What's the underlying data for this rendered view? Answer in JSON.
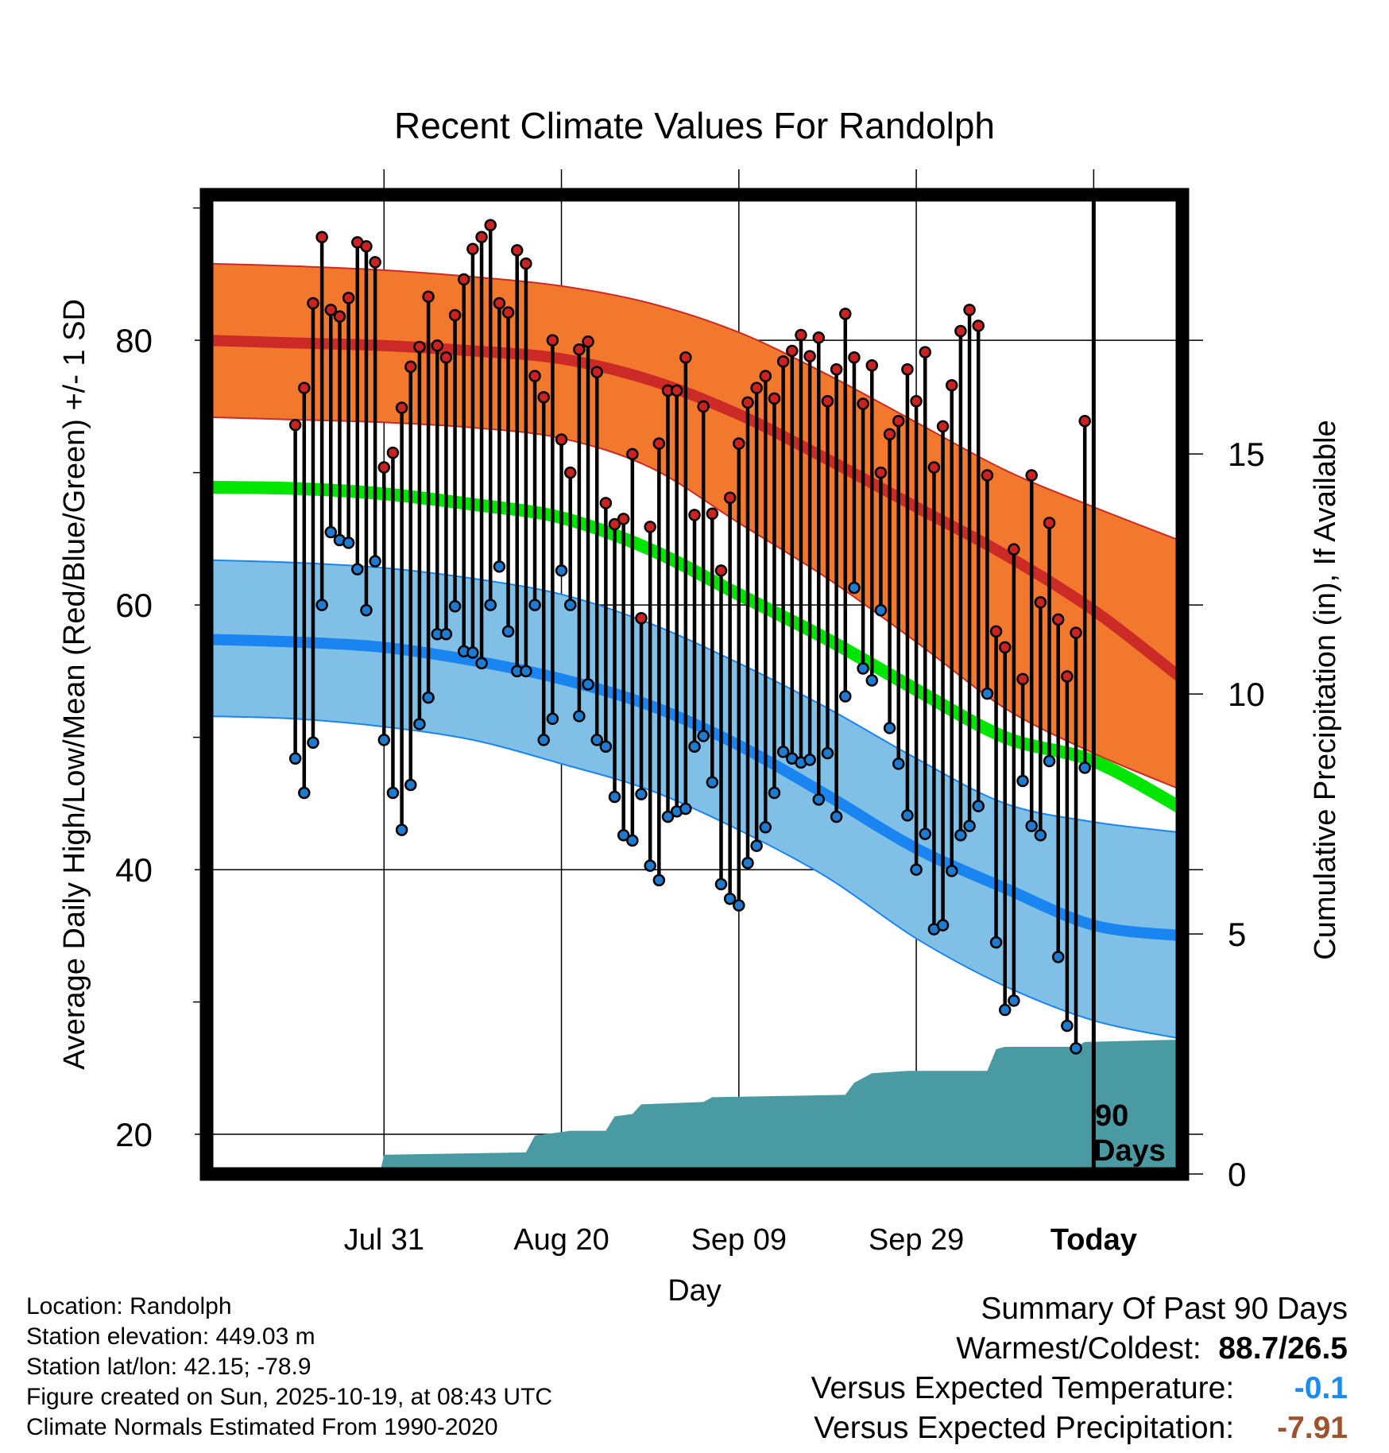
{
  "chart_data": {
    "type": "line",
    "title": "Recent Climate Values For Randolph",
    "xlabel": "Day",
    "ylabel": "Average Daily High/Low/Mean (Red/Blue/Green) +/- 1 SD",
    "y2label": "Cumulative Precipitation (in), If Available",
    "x_tick_labels": [
      "Jul 31",
      "Aug 20",
      "Sep 09",
      "Sep 29",
      "Today"
    ],
    "x_tick_days": [
      10,
      30,
      50,
      70,
      90
    ],
    "xlim": [
      -10,
      100
    ],
    "ylim": [
      17,
      91
    ],
    "y_ticks": [
      20,
      40,
      60,
      80
    ],
    "y2lim": [
      0,
      20.4
    ],
    "y2_ticks": [
      0,
      5,
      10,
      15
    ],
    "today_marker_label": "90 Days",
    "normal_high_mean": [
      [
        -10,
        80.0
      ],
      [
        0,
        79.8
      ],
      [
        10,
        79.6
      ],
      [
        20,
        79.2
      ],
      [
        30,
        78.6
      ],
      [
        40,
        77.0
      ],
      [
        50,
        74.4
      ],
      [
        60,
        71.0
      ],
      [
        70,
        67.4
      ],
      [
        80,
        63.8
      ],
      [
        90,
        59.6
      ],
      [
        100,
        54.4
      ]
    ],
    "normal_high_sd_upper": [
      [
        -10,
        85.8
      ],
      [
        0,
        85.6
      ],
      [
        10,
        85.3
      ],
      [
        20,
        84.8
      ],
      [
        30,
        84.1
      ],
      [
        40,
        82.8
      ],
      [
        50,
        80.6
      ],
      [
        60,
        77.4
      ],
      [
        70,
        73.8
      ],
      [
        80,
        70.2
      ],
      [
        90,
        67.4
      ],
      [
        100,
        64.8
      ]
    ],
    "normal_high_sd_lower": [
      [
        -10,
        74.2
      ],
      [
        0,
        74.0
      ],
      [
        10,
        73.8
      ],
      [
        20,
        73.4
      ],
      [
        30,
        72.6
      ],
      [
        40,
        70.4
      ],
      [
        50,
        66.2
      ],
      [
        60,
        62.0
      ],
      [
        70,
        57.2
      ],
      [
        80,
        52.2
      ],
      [
        90,
        48.8
      ],
      [
        100,
        46.0
      ]
    ],
    "normal_mean": [
      [
        -10,
        68.9
      ],
      [
        0,
        68.8
      ],
      [
        10,
        68.4
      ],
      [
        20,
        67.6
      ],
      [
        30,
        66.6
      ],
      [
        40,
        64.2
      ],
      [
        50,
        60.8
      ],
      [
        60,
        57.4
      ],
      [
        70,
        53.6
      ],
      [
        80,
        50.0
      ],
      [
        90,
        48.2
      ],
      [
        100,
        44.6
      ]
    ],
    "normal_low_mean": [
      [
        -10,
        57.4
      ],
      [
        0,
        57.2
      ],
      [
        10,
        56.8
      ],
      [
        20,
        55.8
      ],
      [
        30,
        54.4
      ],
      [
        40,
        52.4
      ],
      [
        50,
        49.4
      ],
      [
        60,
        45.6
      ],
      [
        70,
        41.6
      ],
      [
        80,
        38.6
      ],
      [
        90,
        35.8
      ],
      [
        100,
        35.0
      ]
    ],
    "normal_low_sd_upper": [
      [
        -10,
        63.4
      ],
      [
        0,
        63.2
      ],
      [
        10,
        62.8
      ],
      [
        20,
        62.0
      ],
      [
        30,
        60.8
      ],
      [
        40,
        58.6
      ],
      [
        50,
        55.6
      ],
      [
        60,
        52.2
      ],
      [
        70,
        48.4
      ],
      [
        80,
        45.0
      ],
      [
        90,
        43.6
      ],
      [
        100,
        42.8
      ]
    ],
    "normal_low_sd_lower": [
      [
        -10,
        51.6
      ],
      [
        0,
        51.4
      ],
      [
        10,
        50.8
      ],
      [
        20,
        49.8
      ],
      [
        30,
        48.0
      ],
      [
        40,
        46.0
      ],
      [
        50,
        43.0
      ],
      [
        60,
        39.4
      ],
      [
        70,
        34.8
      ],
      [
        80,
        31.2
      ],
      [
        90,
        28.6
      ],
      [
        100,
        27.2
      ]
    ],
    "series": [
      {
        "name": "Daily High",
        "values": [
          73.6,
          76.4,
          82.8,
          87.8,
          82.3,
          81.8,
          83.2,
          87.4,
          87.1,
          85.9,
          70.4,
          71.5,
          74.9,
          78.0,
          79.5,
          83.3,
          79.6,
          78.7,
          81.9,
          84.6,
          86.9,
          87.8,
          88.7,
          82.8,
          82.1,
          86.8,
          85.8,
          77.3,
          75.7,
          80.0,
          72.5,
          70.0,
          79.3,
          79.9,
          77.6,
          67.7,
          66.1,
          66.5,
          71.4,
          59.0,
          65.9,
          72.2,
          76.2,
          76.2,
          78.7,
          66.8,
          75.0,
          66.9,
          62.6,
          68.1,
          72.2,
          75.3,
          76.4,
          77.3,
          75.6,
          78.4,
          79.2,
          80.4,
          78.8,
          80.2,
          75.4,
          77.8,
          82.0,
          78.7,
          75.2,
          78.1,
          70.0,
          72.9,
          73.9,
          77.8,
          75.4,
          79.1,
          70.4,
          73.5,
          76.6,
          80.7,
          82.3,
          81.1,
          69.8,
          58.0,
          56.8,
          64.2,
          54.4,
          69.8,
          60.2,
          66.2,
          58.9,
          54.6,
          57.9,
          73.9
        ]
      },
      {
        "name": "Daily Low",
        "values": [
          48.4,
          45.8,
          49.6,
          60.0,
          65.5,
          64.9,
          64.7,
          62.7,
          59.6,
          63.3,
          49.8,
          45.8,
          43.0,
          46.4,
          51.0,
          53.0,
          57.8,
          57.8,
          59.9,
          56.5,
          56.4,
          55.6,
          60.0,
          62.9,
          58.0,
          55.0,
          55.0,
          60.0,
          49.8,
          51.4,
          62.6,
          60.0,
          51.6,
          54.0,
          49.8,
          49.3,
          45.5,
          42.6,
          42.2,
          45.7,
          40.3,
          39.2,
          44.0,
          44.4,
          44.6,
          49.3,
          50.1,
          46.6,
          38.9,
          37.8,
          37.3,
          40.5,
          41.8,
          43.2,
          45.8,
          48.9,
          48.4,
          48.1,
          48.3,
          45.3,
          48.8,
          44.0,
          53.1,
          61.3,
          55.2,
          54.3,
          59.6,
          50.7,
          48.0,
          44.1,
          40.0,
          42.7,
          35.5,
          35.8,
          39.9,
          42.6,
          43.3,
          44.8,
          53.3,
          34.5,
          29.4,
          30.1,
          46.7,
          43.3,
          42.6,
          48.2,
          33.4,
          28.2,
          26.5,
          47.7
        ]
      }
    ],
    "cumulative_precipitation": [
      [
        0,
        0.0
      ],
      [
        9.5,
        0.0
      ],
      [
        10,
        0.4
      ],
      [
        26,
        0.45
      ],
      [
        27,
        0.8
      ],
      [
        31,
        0.9
      ],
      [
        35,
        0.9
      ],
      [
        36,
        1.2
      ],
      [
        38,
        1.25
      ],
      [
        39,
        1.45
      ],
      [
        46,
        1.5
      ],
      [
        47,
        1.6
      ],
      [
        62,
        1.65
      ],
      [
        63,
        1.9
      ],
      [
        65,
        2.1
      ],
      [
        69,
        2.15
      ],
      [
        78,
        2.15
      ],
      [
        79,
        2.6
      ],
      [
        80,
        2.65
      ],
      [
        88,
        2.65
      ],
      [
        89,
        2.75
      ],
      [
        100,
        2.8
      ]
    ]
  },
  "info": {
    "location": "Location: Randolph",
    "elevation": "Station elevation: 449.03 m",
    "latlon": "Station lat/lon: 42.15; -78.9",
    "created": "Figure created on Sun, 2025-10-19, at 08:43 UTC",
    "normals": "Climate Normals Estimated From 1990-2020"
  },
  "summary": {
    "heading": "Summary Of Past 90 Days",
    "warm_cold_label": "Warmest/Coldest:",
    "warm_cold_value": "88.7/26.5",
    "temp_label": "Versus Expected Temperature:",
    "temp_value": "-0.1",
    "precip_label": "Versus Expected Precipitation:",
    "precip_value": "-7.91"
  },
  "colors": {
    "high_band": "#f2782e",
    "high_line": "#cc2a26",
    "mean_line": "#00e600",
    "low_band": "#80bfe6",
    "low_line": "#1a85f0",
    "precip_fill": "#4a9aa3",
    "high_dot": "#cc2222",
    "low_dot": "#1f7bd0",
    "temp_value": "#1a8cf0",
    "precip_value": "#a0522d"
  }
}
